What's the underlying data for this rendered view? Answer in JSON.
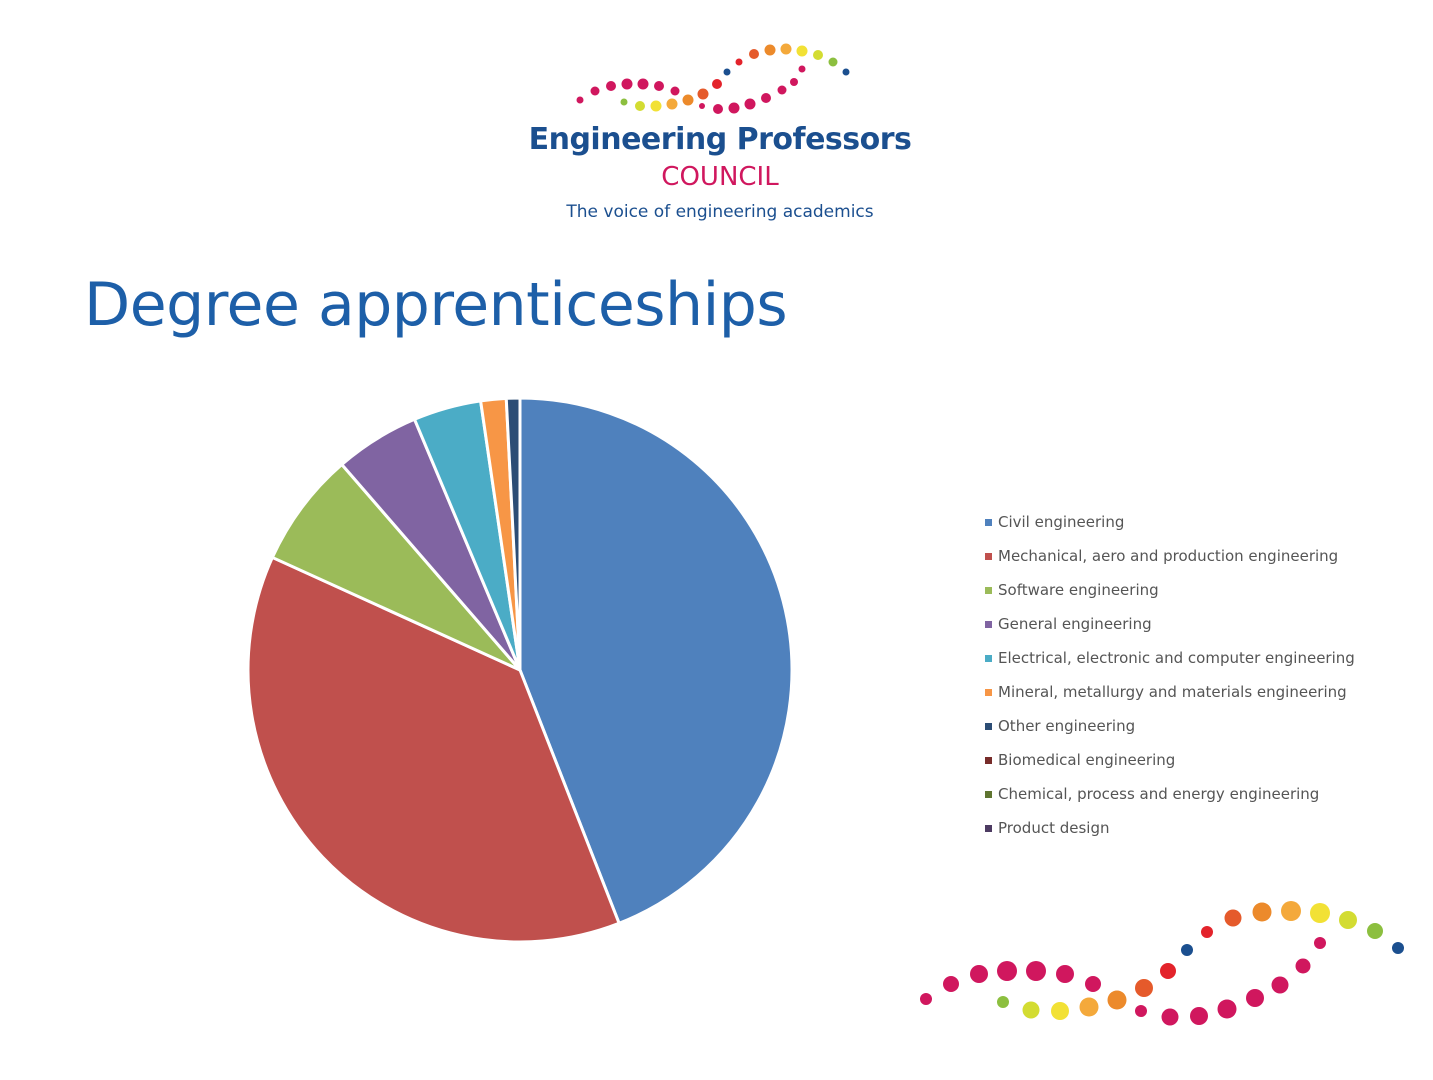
{
  "logo": {
    "name": "Engineering Professors",
    "council": "COUNCIL",
    "tagline": "The voice of engineering academics"
  },
  "title": "Degree apprenticeships",
  "colors": {
    "title": "#1d5fa8",
    "logo_blue": "#1b4f8f",
    "logo_pink": "#d0175e"
  },
  "chart_data": {
    "type": "pie",
    "title": "",
    "legend_position": "right",
    "series": [
      {
        "name": "Civil engineering",
        "value": 43.8,
        "color": "#4f81bd"
      },
      {
        "name": "Mechanical, aero and production engineering",
        "value": 37.5,
        "color": "#c0504d"
      },
      {
        "name": "Software engineering",
        "value": 6.8,
        "color": "#9bbb59"
      },
      {
        "name": "General engineering",
        "value": 5.0,
        "color": "#8064a2"
      },
      {
        "name": "Electrical, electronic and computer engineering",
        "value": 4.0,
        "color": "#4bacc6"
      },
      {
        "name": "Mineral, metallurgy and materials engineering",
        "value": 1.5,
        "color": "#f79646"
      },
      {
        "name": "Other engineering",
        "value": 0.8,
        "color": "#2c4d75"
      },
      {
        "name": "Biomedical engineering",
        "value": 0,
        "color": "#772c2a"
      },
      {
        "name": "Chemical, process and energy engineering",
        "value": 0,
        "color": "#5f7530"
      },
      {
        "name": "Product design",
        "value": 0,
        "color": "#4d3b62"
      }
    ]
  }
}
